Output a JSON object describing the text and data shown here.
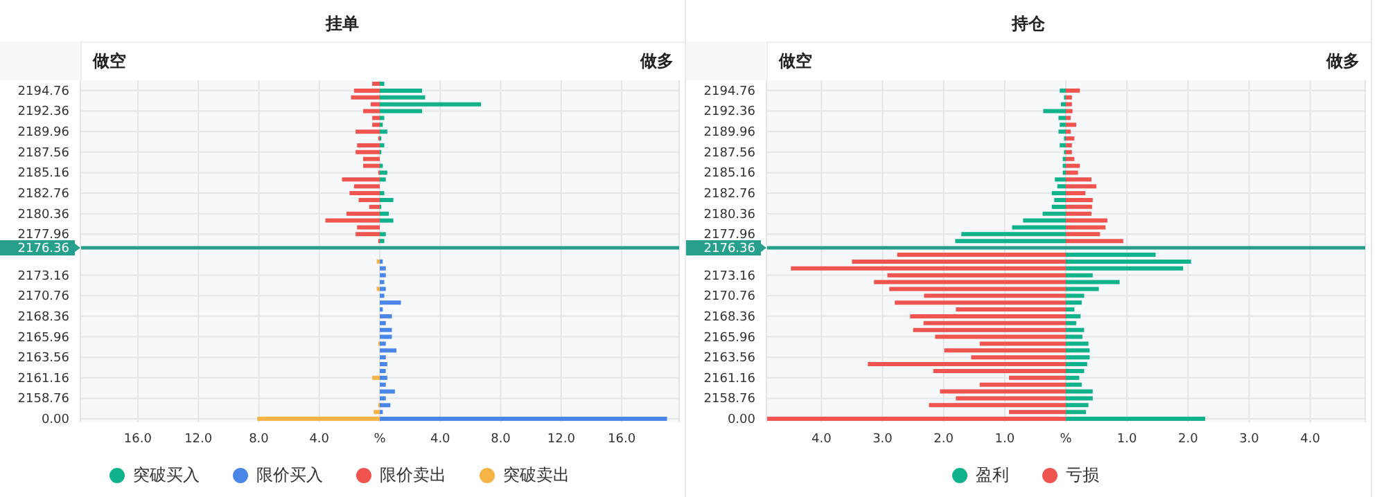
{
  "chart_data": [
    {
      "type": "bar",
      "orientation": "horizontal",
      "stacked": true,
      "title": "挂单",
      "annotations": [
        "做空",
        "做多"
      ],
      "categories": [
        null,
        "2194.76",
        null,
        null,
        "2192.36",
        null,
        null,
        "2189.96",
        null,
        null,
        "2187.56",
        null,
        null,
        "2185.16",
        null,
        null,
        "2182.76",
        null,
        null,
        "2180.36",
        null,
        null,
        "2177.96",
        null,
        "2176.36",
        null,
        null,
        null,
        "2173.16",
        null,
        null,
        "2170.76",
        null,
        null,
        "2168.36",
        null,
        null,
        "2165.96",
        null,
        null,
        "2163.56",
        null,
        null,
        "2161.16",
        null,
        null,
        "2158.76",
        null,
        null,
        "0.00"
      ],
      "series": [
        {
          "name": "突破买入",
          "color": "#0fb28a",
          "values": [
            0.3,
            2.8,
            3.0,
            6.7,
            2.8,
            0.3,
            0.2,
            0.5,
            0.1,
            0.3,
            0.1,
            null,
            0.2,
            0.5,
            0.4,
            null,
            0.3,
            0.9,
            0.1,
            0.6,
            0.9,
            null,
            0.4,
            0.3,
            null,
            null,
            null,
            null,
            null,
            null,
            null,
            null,
            null,
            null,
            null,
            null,
            null,
            null,
            null,
            null,
            null,
            null,
            null,
            null,
            null,
            null,
            null,
            null,
            null,
            null
          ]
        },
        {
          "name": "限价买入",
          "color": "#4a86e8",
          "values": [
            null,
            null,
            null,
            null,
            null,
            null,
            null,
            null,
            null,
            null,
            null,
            null,
            null,
            null,
            null,
            null,
            null,
            null,
            null,
            null,
            null,
            null,
            null,
            null,
            null,
            null,
            0.2,
            0.4,
            0.4,
            0.3,
            0.4,
            0.3,
            1.4,
            0.2,
            0.8,
            0.4,
            0.8,
            0.8,
            0.4,
            1.1,
            0.4,
            0.5,
            0.4,
            0.5,
            0.4,
            1.0,
            0.4,
            0.7,
            0.2,
            19.0
          ]
        },
        {
          "name": "限价卖出",
          "color": "#f0544f",
          "values": [
            -0.5,
            -1.7,
            -1.9,
            -0.6,
            -1.1,
            -0.5,
            -0.5,
            -1.6,
            -0.1,
            -1.5,
            -1.6,
            -1.1,
            -1.1,
            -0.1,
            -2.5,
            -1.7,
            -2.0,
            -1.4,
            -0.7,
            -2.2,
            -3.6,
            -1.5,
            -1.6,
            -0.1,
            null,
            null,
            null,
            null,
            null,
            null,
            null,
            null,
            null,
            null,
            null,
            null,
            null,
            null,
            null,
            null,
            null,
            null,
            null,
            null,
            null,
            null,
            null,
            null,
            null,
            null
          ]
        },
        {
          "name": "突破卖出",
          "color": "#f5b445",
          "values": [
            null,
            null,
            null,
            null,
            null,
            null,
            null,
            null,
            null,
            null,
            null,
            null,
            null,
            null,
            null,
            null,
            null,
            null,
            null,
            null,
            null,
            null,
            null,
            null,
            null,
            null,
            -0.2,
            null,
            null,
            null,
            -0.2,
            null,
            null,
            null,
            null,
            null,
            null,
            null,
            -0.1,
            null,
            null,
            null,
            null,
            -0.5,
            null,
            null,
            null,
            -0.1,
            -0.4,
            -8.1
          ]
        }
      ],
      "xlim": [
        -19.8,
        19.8
      ],
      "xticks": [
        {
          "value": -16,
          "label": "16.0"
        },
        {
          "value": -12,
          "label": "12.0"
        },
        {
          "value": -8,
          "label": "8.0"
        },
        {
          "value": -4,
          "label": "4.0"
        },
        {
          "value": 0,
          "label": "%"
        },
        {
          "value": 4,
          "label": "4.0"
        },
        {
          "value": 8,
          "label": "8.0"
        },
        {
          "value": 12,
          "label": "12.0"
        },
        {
          "value": 16,
          "label": "16.0"
        }
      ],
      "ref_lines": [
        {
          "axis": "y",
          "value": "2176.36",
          "color": "#26a08c"
        }
      ],
      "grid": true,
      "legend": "bottom"
    },
    {
      "type": "bar",
      "orientation": "horizontal",
      "stacked": true,
      "title": "持仓",
      "annotations": [
        "做空",
        "做多"
      ],
      "categories": [
        null,
        "2194.76",
        null,
        null,
        "2192.36",
        null,
        null,
        "2189.96",
        null,
        null,
        "2187.56",
        null,
        null,
        "2185.16",
        null,
        null,
        "2182.76",
        null,
        null,
        "2180.36",
        null,
        null,
        "2177.96",
        null,
        "2176.36",
        null,
        null,
        null,
        "2173.16",
        null,
        null,
        "2170.76",
        null,
        null,
        "2168.36",
        null,
        null,
        "2165.96",
        null,
        null,
        "2163.56",
        null,
        null,
        "2161.16",
        null,
        null,
        "2158.76",
        null,
        null,
        "0.00"
      ],
      "series": [
        {
          "name": "盈利",
          "color": "#0fb28a",
          "values": [
            null,
            -0.1,
            -0.03,
            -0.08,
            -0.37,
            -0.12,
            -0.1,
            -0.12,
            -0.03,
            -0.1,
            -0.03,
            -0.05,
            -0.05,
            -0.05,
            -0.18,
            -0.14,
            -0.23,
            -0.19,
            -0.23,
            -0.38,
            -0.7,
            -0.88,
            -1.71,
            -1.81,
            null,
            1.47,
            2.05,
            1.92,
            0.44,
            0.88,
            0.54,
            0.3,
            0.26,
            0.14,
            0.24,
            0.17,
            0.3,
            0.27,
            0.37,
            0.39,
            0.39,
            0.35,
            0.3,
            0.22,
            0.26,
            0.44,
            0.44,
            0.37,
            0.33,
            2.28
          ]
        },
        {
          "name": "亏损",
          "color": "#f0544f",
          "values": [
            null,
            0.23,
            0.1,
            0.1,
            0.11,
            0.08,
            0.17,
            0.08,
            0.14,
            0.1,
            0.1,
            0.14,
            0.23,
            0.2,
            0.42,
            0.5,
            0.32,
            0.44,
            0.43,
            0.42,
            0.68,
            0.65,
            0.56,
            0.94,
            null,
            -2.76,
            -3.5,
            -4.5,
            -2.92,
            -3.14,
            -2.89,
            -2.32,
            -2.8,
            -1.8,
            -2.55,
            -2.33,
            -2.5,
            -2.14,
            -1.41,
            -1.99,
            -1.55,
            -3.24,
            -2.17,
            -0.93,
            -1.41,
            -2.06,
            -1.8,
            -2.24,
            -0.93,
            -4.9
          ]
        }
      ],
      "xlim": [
        -4.9,
        4.9
      ],
      "xticks": [
        {
          "value": -4,
          "label": "4.0"
        },
        {
          "value": -3,
          "label": "3.0"
        },
        {
          "value": -2,
          "label": "2.0"
        },
        {
          "value": -1,
          "label": "1.0"
        },
        {
          "value": 0,
          "label": "%"
        },
        {
          "value": 1,
          "label": "1.0"
        },
        {
          "value": 2,
          "label": "2.0"
        },
        {
          "value": 3,
          "label": "3.0"
        },
        {
          "value": 4,
          "label": "4.0"
        }
      ],
      "ref_lines": [
        {
          "axis": "y",
          "value": "2176.36",
          "color": "#26a08c"
        }
      ],
      "grid": true,
      "legend": "bottom"
    }
  ]
}
